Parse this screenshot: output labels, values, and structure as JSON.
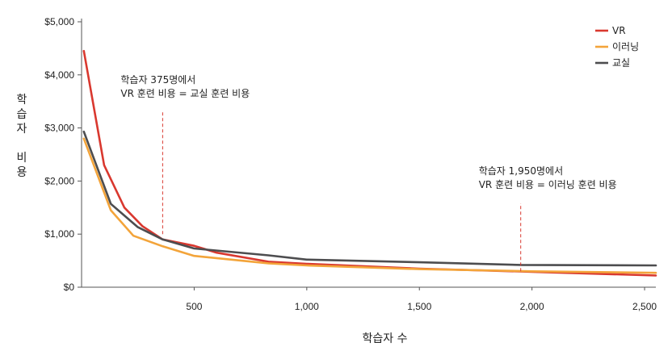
{
  "chart_data": {
    "type": "line",
    "xlabel": "학습자 수",
    "ylabel": "학습자 비용",
    "xlim": [
      0,
      2550
    ],
    "ylim": [
      0,
      5000
    ],
    "x_ticks": [
      {
        "value": 500,
        "label": "500"
      },
      {
        "value": 1000,
        "label": "1,000"
      },
      {
        "value": 1500,
        "label": "1,500"
      },
      {
        "value": 2000,
        "label": "2,000"
      },
      {
        "value": 2500,
        "label": "2,500"
      }
    ],
    "y_ticks": [
      {
        "value": 0,
        "label": "$0"
      },
      {
        "value": 1000,
        "label": "$1,000"
      },
      {
        "value": 2000,
        "label": "$2,000"
      },
      {
        "value": 3000,
        "label": "$3,000"
      },
      {
        "value": 4000,
        "label": "$4,000"
      },
      {
        "value": 5000,
        "label": "$5,000"
      }
    ],
    "grid": false,
    "legend_position": "top-right",
    "series": [
      {
        "name": "VR",
        "color": "#d9382f",
        "points": [
          [
            10,
            4450
          ],
          [
            100,
            2300
          ],
          [
            190,
            1500
          ],
          [
            270,
            1150
          ],
          [
            360,
            900
          ],
          [
            500,
            780
          ],
          [
            600,
            650
          ],
          [
            830,
            480
          ],
          [
            1000,
            440
          ],
          [
            1500,
            350
          ],
          [
            2000,
            290
          ],
          [
            2550,
            220
          ]
        ]
      },
      {
        "name": "이러닝",
        "color": "#f3a43a",
        "points": [
          [
            10,
            2800
          ],
          [
            130,
            1450
          ],
          [
            230,
            970
          ],
          [
            360,
            770
          ],
          [
            500,
            590
          ],
          [
            830,
            450
          ],
          [
            1000,
            410
          ],
          [
            1500,
            340
          ],
          [
            2000,
            300
          ],
          [
            2550,
            270
          ]
        ]
      },
      {
        "name": "교실",
        "color": "#4d4d4f",
        "points": [
          [
            10,
            2930
          ],
          [
            130,
            1570
          ],
          [
            250,
            1130
          ],
          [
            360,
            900
          ],
          [
            500,
            730
          ],
          [
            830,
            600
          ],
          [
            1000,
            520
          ],
          [
            1500,
            470
          ],
          [
            1950,
            420
          ],
          [
            2550,
            410
          ]
        ]
      }
    ],
    "annotations": [
      {
        "x": 360,
        "y_from": 1000,
        "y_to": 3300,
        "lines": [
          "학습자 375명에서",
          "VR 훈련 비용 = 교실 훈련 비용"
        ]
      },
      {
        "x": 1950,
        "y_from": 300,
        "y_to": 1580,
        "lines": [
          "학습자 1,950명에서",
          "VR 훈련 비용 = 이러닝 훈련 비용"
        ]
      }
    ]
  }
}
